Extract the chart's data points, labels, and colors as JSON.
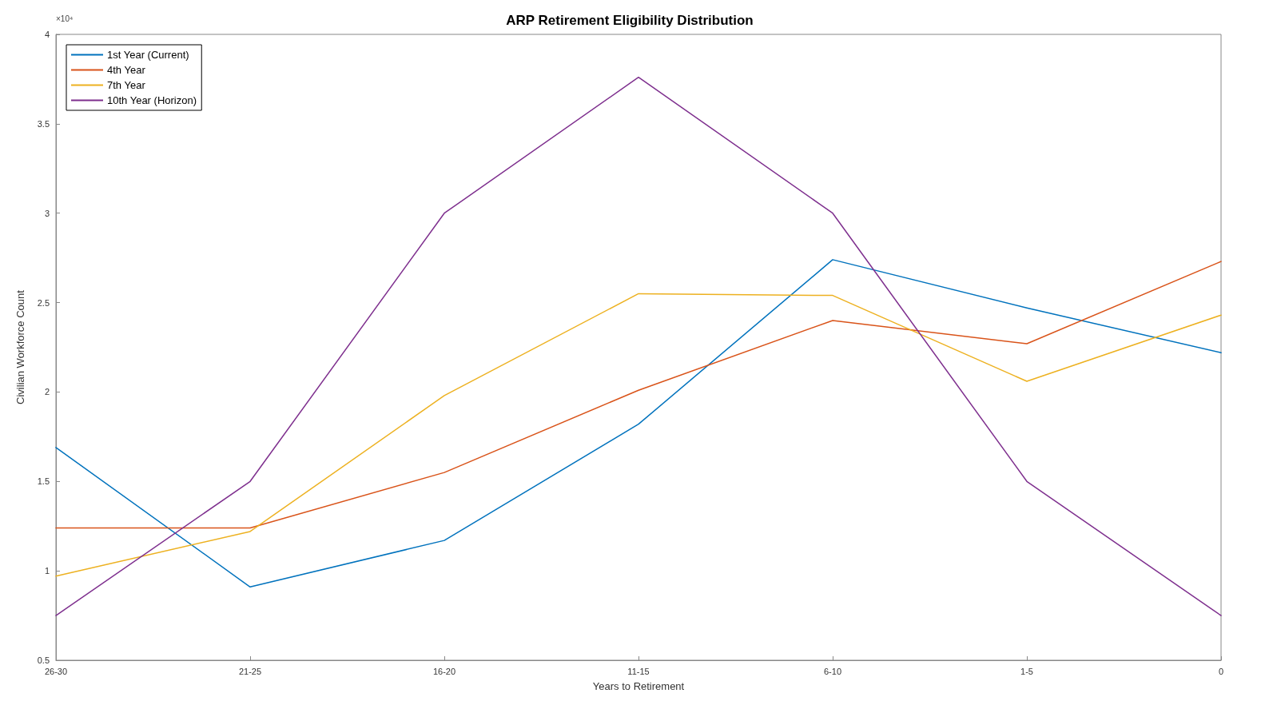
{
  "chart_data": {
    "type": "line",
    "title": "ARP Retirement Eligibility Distribution",
    "xlabel": "Years to Retirement",
    "ylabel": "Civilian Workforce Count",
    "annotations": [
      "×10⁴"
    ],
    "categories": [
      "26-30",
      "21-25",
      "16-20",
      "11-15",
      "6-10",
      "1-5",
      "0"
    ],
    "ylim": [
      0.5,
      4
    ],
    "yticks": [
      0.5,
      1,
      1.5,
      2,
      2.5,
      3,
      3.5,
      4
    ],
    "grid": false,
    "legend": "top left",
    "marker": "none",
    "line_style": "solid",
    "series": [
      {
        "name": "1st Year (Current)",
        "color": "#0072bd",
        "values": [
          1.69,
          0.91,
          1.17,
          1.82,
          2.74,
          2.47,
          2.22
        ]
      },
      {
        "name": "4th Year",
        "color": "#d95319",
        "values": [
          1.24,
          1.24,
          1.55,
          2.01,
          2.4,
          2.27,
          2.73
        ]
      },
      {
        "name": "7th Year",
        "color": "#edb120",
        "values": [
          0.97,
          1.22,
          1.98,
          2.55,
          2.54,
          2.06,
          2.43
        ]
      },
      {
        "name": "10th Year (Horizon)",
        "color": "#7e2f8e",
        "values": [
          0.75,
          1.5,
          3,
          3.76,
          3,
          1.5,
          0.75
        ]
      }
    ]
  }
}
